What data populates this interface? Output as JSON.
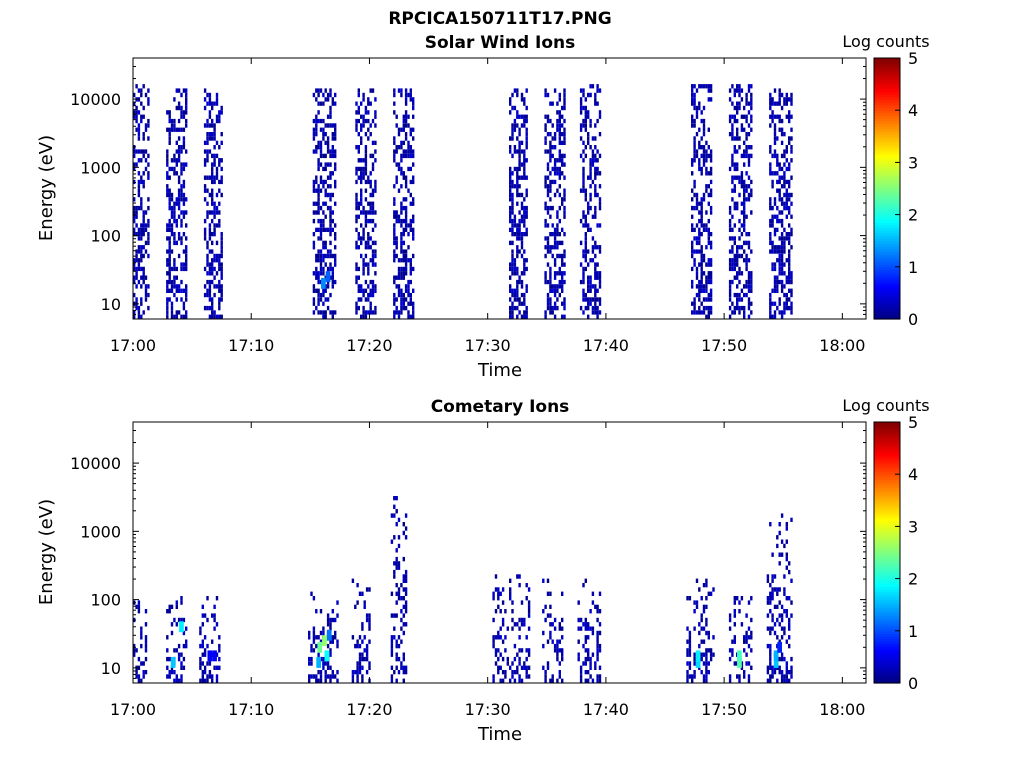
{
  "figure": {
    "title": "RPCICA150711T17.PNG"
  },
  "chart_data": [
    {
      "type": "heatmap",
      "title": "Solar Wind Ions",
      "xlabel": "Time",
      "ylabel": "Energy (eV)",
      "x_ticks": [
        "17:00",
        "17:10",
        "17:20",
        "17:30",
        "17:40",
        "17:50",
        "18:00"
      ],
      "x_range_minutes": [
        0,
        62
      ],
      "y_ticks": [
        "10",
        "100",
        "1000",
        "10000"
      ],
      "y_scale": "log",
      "y_range": [
        6,
        40000
      ],
      "colorbar": {
        "label": "Log counts",
        "range": [
          0,
          5
        ],
        "ticks": [
          "0",
          "1",
          "2",
          "3",
          "4",
          "5"
        ],
        "colormap": "jet"
      },
      "bursts": [
        {
          "start_min": 0.0,
          "end_min": 1.4,
          "max_energy": 15000,
          "seed": 11,
          "hot": []
        },
        {
          "start_min": 2.8,
          "end_min": 4.5,
          "max_energy": 14000,
          "seed": 12,
          "hot": []
        },
        {
          "start_min": 6.0,
          "end_min": 7.6,
          "max_energy": 14000,
          "seed": 13,
          "hot": []
        },
        {
          "start_min": 15.2,
          "end_min": 17.0,
          "max_energy": 13000,
          "seed": 14,
          "hot": [
            {
              "min": 15.9,
              "energy": 20,
              "value": 1.3
            },
            {
              "min": 16.3,
              "energy": 25,
              "value": 1.1
            }
          ]
        },
        {
          "start_min": 18.8,
          "end_min": 20.5,
          "max_energy": 13000,
          "seed": 15,
          "hot": []
        },
        {
          "start_min": 22.0,
          "end_min": 23.6,
          "max_energy": 14000,
          "seed": 16,
          "hot": []
        },
        {
          "start_min": 31.8,
          "end_min": 33.3,
          "max_energy": 14000,
          "seed": 17,
          "hot": []
        },
        {
          "start_min": 34.8,
          "end_min": 36.5,
          "max_energy": 14000,
          "seed": 18,
          "hot": []
        },
        {
          "start_min": 37.8,
          "end_min": 39.6,
          "max_energy": 15000,
          "seed": 19,
          "hot": []
        },
        {
          "start_min": 47.2,
          "end_min": 49.0,
          "max_energy": 15000,
          "seed": 20,
          "hot": []
        },
        {
          "start_min": 50.4,
          "end_min": 52.4,
          "max_energy": 15000,
          "seed": 21,
          "hot": []
        },
        {
          "start_min": 53.8,
          "end_min": 55.8,
          "max_energy": 14000,
          "seed": 22,
          "hot": []
        }
      ]
    },
    {
      "type": "heatmap",
      "title": "Cometary Ions",
      "xlabel": "Time",
      "ylabel": "Energy (eV)",
      "x_ticks": [
        "17:00",
        "17:10",
        "17:20",
        "17:30",
        "17:40",
        "17:50",
        "18:00"
      ],
      "x_range_minutes": [
        0,
        62
      ],
      "y_ticks": [
        "10",
        "100",
        "1000",
        "10000"
      ],
      "y_scale": "log",
      "y_range": [
        6,
        40000
      ],
      "colorbar": {
        "label": "Log counts",
        "range": [
          0,
          5
        ],
        "ticks": [
          "0",
          "1",
          "2",
          "3",
          "4",
          "5"
        ],
        "colormap": "jet"
      },
      "bursts": [
        {
          "start_min": 0.0,
          "end_min": 1.2,
          "max_energy": 100,
          "seed": 31,
          "hot": []
        },
        {
          "start_min": 2.8,
          "end_min": 4.6,
          "max_energy": 120,
          "seed": 32,
          "hot": [
            {
              "min": 3.2,
              "energy": 12,
              "value": 1.6
            },
            {
              "min": 3.9,
              "energy": 40,
              "value": 1.8
            }
          ]
        },
        {
          "start_min": 5.6,
          "end_min": 7.4,
          "max_energy": 100,
          "seed": 33,
          "hot": [
            {
              "min": 6.3,
              "energy": 15,
              "value": 0.6
            },
            {
              "min": 6.7,
              "energy": 15,
              "value": 0.6
            }
          ]
        },
        {
          "start_min": 14.8,
          "end_min": 17.2,
          "max_energy": 120,
          "seed": 34,
          "hot": [
            {
              "min": 15.6,
              "energy": 20,
              "value": 2.4
            },
            {
              "min": 16.0,
              "energy": 25,
              "value": 2.6
            },
            {
              "min": 16.2,
              "energy": 15,
              "value": 1.9
            },
            {
              "min": 15.5,
              "energy": 12,
              "value": 1.5
            },
            {
              "min": 16.4,
              "energy": 30,
              "value": 1.2
            }
          ]
        },
        {
          "start_min": 18.5,
          "end_min": 20.0,
          "max_energy": 200,
          "seed": 35,
          "hot": []
        },
        {
          "start_min": 21.8,
          "end_min": 23.0,
          "max_energy": 3200,
          "seed": 36,
          "hot": []
        },
        {
          "start_min": 30.4,
          "end_min": 33.5,
          "max_energy": 220,
          "seed": 37,
          "hot": []
        },
        {
          "start_min": 34.6,
          "end_min": 36.4,
          "max_energy": 200,
          "seed": 38,
          "hot": []
        },
        {
          "start_min": 37.6,
          "end_min": 39.6,
          "max_energy": 200,
          "seed": 39,
          "hot": []
        },
        {
          "start_min": 46.8,
          "end_min": 49.2,
          "max_energy": 200,
          "seed": 40,
          "hot": [
            {
              "min": 47.6,
              "energy": 12,
              "value": 1.7
            },
            {
              "min": 47.6,
              "energy": 15,
              "value": 1.8
            }
          ]
        },
        {
          "start_min": 50.4,
          "end_min": 52.4,
          "max_energy": 120,
          "seed": 41,
          "hot": [
            {
              "min": 51.1,
              "energy": 12,
              "value": 2.3
            },
            {
              "min": 51.1,
              "energy": 15,
              "value": 2.2
            }
          ]
        },
        {
          "start_min": 53.6,
          "end_min": 55.8,
          "max_energy": 1800,
          "seed": 42,
          "hot": [
            {
              "min": 54.2,
              "energy": 12,
              "value": 1.6
            },
            {
              "min": 54.2,
              "energy": 15,
              "value": 1.5
            },
            {
              "min": 54.5,
              "energy": 20,
              "value": 0.8
            }
          ]
        }
      ]
    }
  ]
}
